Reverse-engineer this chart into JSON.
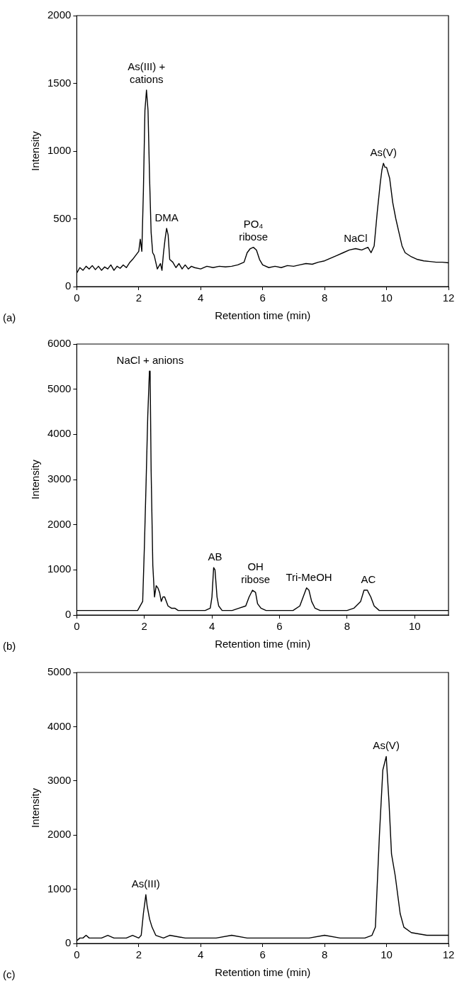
{
  "chart_data": [
    {
      "type": "line",
      "xlabel": "Retention time (min)",
      "ylabel": "Intensity",
      "color": "#000000",
      "xlim": [
        0,
        12
      ],
      "xticks": [
        0,
        2,
        4,
        6,
        8,
        10,
        12
      ],
      "ylim": [
        0,
        2000
      ],
      "yticks": [
        0,
        500,
        1000,
        1500,
        2000
      ],
      "x": [
        0,
        0.1,
        0.2,
        0.3,
        0.4,
        0.5,
        0.6,
        0.7,
        0.8,
        0.9,
        1.0,
        1.1,
        1.2,
        1.3,
        1.4,
        1.5,
        1.6,
        1.7,
        1.8,
        1.9,
        2.0,
        2.05,
        2.1,
        2.15,
        2.2,
        2.25,
        2.3,
        2.35,
        2.4,
        2.45,
        2.5,
        2.6,
        2.7,
        2.75,
        2.8,
        2.85,
        2.9,
        2.95,
        3.0,
        3.1,
        3.2,
        3.3,
        3.4,
        3.5,
        3.6,
        3.7,
        3.8,
        4.0,
        4.2,
        4.4,
        4.6,
        4.8,
        5.0,
        5.2,
        5.4,
        5.5,
        5.6,
        5.7,
        5.8,
        5.9,
        6.0,
        6.2,
        6.4,
        6.6,
        6.8,
        7.0,
        7.2,
        7.4,
        7.6,
        7.8,
        8.0,
        8.2,
        8.4,
        8.6,
        8.8,
        9.0,
        9.2,
        9.4,
        9.5,
        9.6,
        9.7,
        9.8,
        9.85,
        9.9,
        9.95,
        10.0,
        10.1,
        10.2,
        10.3,
        10.4,
        10.5,
        10.6,
        10.8,
        11.0,
        11.2,
        11.4,
        11.6,
        11.8,
        12.0
      ],
      "values": [
        100,
        140,
        120,
        150,
        130,
        155,
        125,
        150,
        120,
        145,
        130,
        160,
        120,
        150,
        135,
        160,
        140,
        175,
        200,
        230,
        260,
        350,
        260,
        700,
        1300,
        1450,
        1300,
        800,
        400,
        250,
        230,
        130,
        170,
        120,
        250,
        350,
        430,
        380,
        200,
        180,
        140,
        170,
        130,
        160,
        130,
        150,
        140,
        130,
        150,
        140,
        150,
        145,
        150,
        160,
        180,
        250,
        280,
        290,
        270,
        200,
        160,
        140,
        150,
        140,
        155,
        150,
        160,
        170,
        165,
        180,
        190,
        210,
        230,
        250,
        270,
        280,
        270,
        290,
        250,
        300,
        550,
        770,
        860,
        910,
        880,
        880,
        800,
        620,
        500,
        400,
        300,
        250,
        220,
        200,
        190,
        185,
        180,
        180,
        175
      ],
      "annotations": [
        {
          "text": "As(III) +\ncations",
          "x": 2.25,
          "y": 1450
        },
        {
          "text": "DMA",
          "x": 2.9,
          "y": 430
        },
        {
          "text": "PO₄\nribose",
          "x": 5.7,
          "y": 290
        },
        {
          "text": "NaCl",
          "x": 9.0,
          "y": 280
        },
        {
          "text": "As(V)",
          "x": 9.9,
          "y": 910
        },
        "(a)"
      ]
    },
    {
      "type": "line",
      "xlabel": "Retention time (min)",
      "ylabel": "Intensity",
      "color": "#000000",
      "xlim": [
        0,
        11
      ],
      "xticks": [
        0,
        2,
        4,
        6,
        8,
        10
      ],
      "ylim": [
        0,
        6000
      ],
      "yticks": [
        0,
        1000,
        2000,
        3000,
        4000,
        5000,
        6000
      ],
      "x": [
        0,
        0.2,
        0.4,
        0.6,
        0.8,
        1.0,
        1.2,
        1.4,
        1.6,
        1.8,
        1.95,
        2.0,
        2.05,
        2.1,
        2.15,
        2.17,
        2.2,
        2.25,
        2.3,
        2.35,
        2.4,
        2.45,
        2.5,
        2.55,
        2.6,
        2.7,
        2.8,
        2.9,
        3.0,
        3.2,
        3.4,
        3.6,
        3.8,
        3.95,
        4.0,
        4.05,
        4.09,
        4.15,
        4.2,
        4.3,
        4.4,
        4.6,
        4.8,
        5.0,
        5.1,
        5.2,
        5.29,
        5.35,
        5.45,
        5.6,
        5.8,
        6.0,
        6.2,
        6.4,
        6.6,
        6.7,
        6.8,
        6.87,
        6.95,
        7.05,
        7.2,
        7.4,
        7.6,
        7.8,
        8.0,
        8.2,
        8.4,
        8.5,
        8.6,
        8.63,
        8.7,
        8.8,
        8.95,
        9.2,
        9.5,
        9.8,
        10.1,
        10.4,
        10.7,
        11.0
      ],
      "values": [
        100,
        100,
        100,
        100,
        100,
        100,
        100,
        100,
        100,
        100,
        300,
        1500,
        2900,
        4400,
        5400,
        5400,
        3200,
        1100,
        400,
        650,
        600,
        500,
        300,
        400,
        400,
        200,
        150,
        150,
        100,
        100,
        100,
        100,
        100,
        150,
        400,
        1050,
        1000,
        400,
        200,
        100,
        100,
        100,
        150,
        200,
        400,
        550,
        500,
        250,
        150,
        100,
        100,
        100,
        100,
        100,
        200,
        400,
        600,
        550,
        300,
        150,
        100,
        100,
        100,
        100,
        100,
        150,
        300,
        550,
        550,
        500,
        400,
        200,
        100,
        100,
        100,
        100,
        100,
        100,
        100,
        100
      ],
      "annotations": [
        {
          "text": "NaCl + anions",
          "x": 2.17,
          "y": 5400
        },
        {
          "text": "AB",
          "x": 4.09,
          "y": 1050
        },
        {
          "text": "OH\nribose",
          "x": 5.29,
          "y": 550
        },
        {
          "text": "Tri-MeOH",
          "x": 6.87,
          "y": 600
        },
        {
          "text": "AC",
          "x": 8.63,
          "y": 550
        },
        "(b)"
      ]
    },
    {
      "type": "line",
      "xlabel": "Retention time (min)",
      "ylabel": "Intensity",
      "color": "#000000",
      "xlim": [
        0,
        12
      ],
      "xticks": [
        0,
        2,
        4,
        6,
        8,
        10,
        12
      ],
      "ylim": [
        0,
        5000
      ],
      "yticks": [
        0,
        1000,
        2000,
        3000,
        4000,
        5000
      ],
      "x": [
        0,
        0.1,
        0.2,
        0.3,
        0.4,
        0.6,
        0.8,
        1.0,
        1.2,
        1.4,
        1.6,
        1.8,
        2.0,
        2.08,
        2.15,
        2.23,
        2.27,
        2.35,
        2.43,
        2.55,
        2.8,
        3.0,
        3.5,
        4.0,
        4.5,
        5.0,
        5.5,
        6.0,
        6.5,
        7.0,
        7.5,
        8.0,
        8.5,
        9.0,
        9.3,
        9.53,
        9.64,
        9.77,
        9.88,
        9.99,
        10.08,
        10.16,
        10.28,
        10.44,
        10.56,
        10.8,
        11.3,
        11.6,
        12.0
      ],
      "values": [
        50,
        100,
        100,
        150,
        100,
        100,
        100,
        150,
        100,
        100,
        100,
        150,
        100,
        150,
        550,
        900,
        700,
        450,
        300,
        150,
        100,
        150,
        100,
        100,
        100,
        150,
        100,
        100,
        100,
        100,
        100,
        150,
        100,
        100,
        100,
        150,
        300,
        2000,
        3200,
        3450,
        2600,
        1650,
        1250,
        550,
        300,
        200,
        150,
        150,
        150
      ],
      "annotations": [
        {
          "text": "As(III)",
          "x": 2.23,
          "y": 900
        },
        {
          "text": "As(V)",
          "x": 9.99,
          "y": 3450
        },
        "(c)"
      ]
    }
  ]
}
